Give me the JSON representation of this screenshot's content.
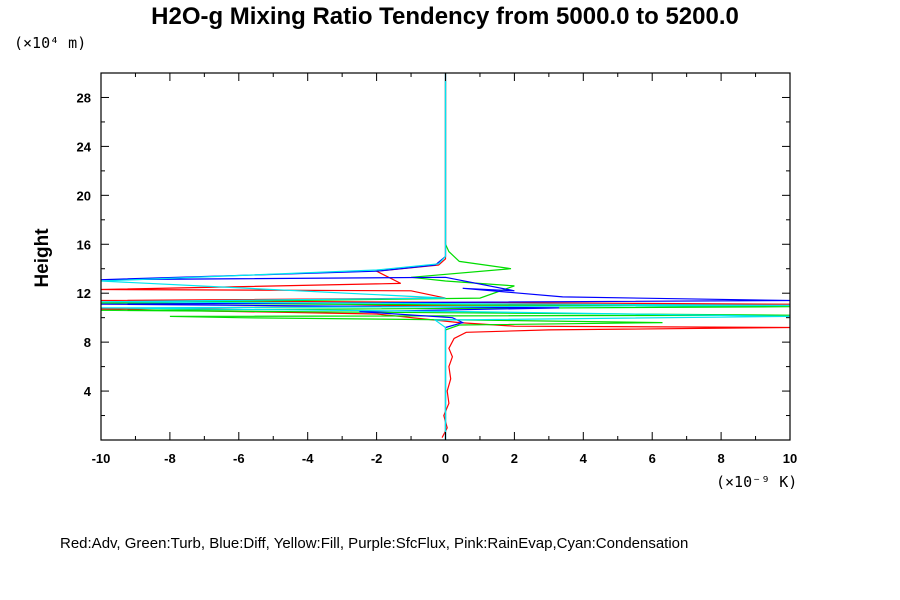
{
  "chart_data": {
    "type": "line",
    "title": "H2O-g Mixing Ratio Tendency from 5000.0 to 5200.0",
    "ylabel": "Height",
    "y_scale_label": "(×10⁴ m)",
    "x_scale_label": "(×10⁻⁹ K)",
    "xlim": [
      -10,
      10
    ],
    "ylim": [
      0,
      30
    ],
    "x_ticks": [
      -10,
      -8,
      -6,
      -4,
      -2,
      0,
      2,
      4,
      6,
      8,
      10
    ],
    "y_ticks": [
      4,
      8,
      12,
      16,
      20,
      24,
      28
    ],
    "legend_text": "Red:Adv, Green:Turb, Blue:Diff, Yellow:Fill, Purple:SfcFlux, Pink:RainEvap,Cyan:Condensation",
    "series": [
      {
        "name": "Adv",
        "color": "#ff0000",
        "points": [
          [
            -0.1,
            0.2
          ],
          [
            0.05,
            1.0
          ],
          [
            -0.05,
            2.0
          ],
          [
            0.1,
            3.0
          ],
          [
            0.05,
            4.0
          ],
          [
            0.15,
            5.0
          ],
          [
            0.1,
            6.0
          ],
          [
            0.2,
            6.8
          ],
          [
            0.1,
            7.5
          ],
          [
            0.25,
            8.3
          ],
          [
            0.6,
            8.8
          ],
          [
            3.0,
            9.0
          ],
          [
            10.0,
            9.2
          ],
          [
            2.0,
            9.3
          ],
          [
            0.4,
            9.6
          ],
          [
            -2.0,
            10.3
          ],
          [
            -10.0,
            10.7
          ],
          [
            -1.0,
            11.0
          ],
          [
            10.0,
            11.1
          ],
          [
            -10.0,
            11.4
          ],
          [
            0.0,
            11.6
          ],
          [
            -1.0,
            12.2
          ],
          [
            -10.0,
            12.3
          ],
          [
            -1.3,
            12.8
          ],
          [
            -2.0,
            13.8
          ],
          [
            -0.2,
            14.3
          ],
          [
            0.0,
            14.8
          ],
          [
            0.0,
            30.0
          ]
        ]
      },
      {
        "name": "Turb",
        "color": "#00dd00",
        "points": [
          [
            0.0,
            0.0
          ],
          [
            0.0,
            9.0
          ],
          [
            0.4,
            9.4
          ],
          [
            6.3,
            9.6
          ],
          [
            1.0,
            9.8
          ],
          [
            -6.0,
            10.0
          ],
          [
            -8.0,
            10.1
          ],
          [
            10.0,
            10.2
          ],
          [
            -10.0,
            10.6
          ],
          [
            10.0,
            10.9
          ],
          [
            -10.0,
            11.2
          ],
          [
            1.0,
            11.6
          ],
          [
            2.0,
            12.6
          ],
          [
            0.0,
            13.0
          ],
          [
            -1.0,
            13.3
          ],
          [
            1.9,
            14.0
          ],
          [
            0.4,
            14.6
          ],
          [
            0.1,
            15.4
          ],
          [
            0.0,
            16.0
          ],
          [
            0.0,
            30.0
          ]
        ]
      },
      {
        "name": "Diff",
        "color": "#0000ff",
        "points": [
          [
            0.0,
            0.0
          ],
          [
            0.0,
            9.2
          ],
          [
            0.5,
            9.6
          ],
          [
            0.2,
            10.0
          ],
          [
            -2.5,
            10.5
          ],
          [
            3.3,
            10.8
          ],
          [
            -10.0,
            11.1
          ],
          [
            10.0,
            11.4
          ],
          [
            3.4,
            11.7
          ],
          [
            0.5,
            12.4
          ],
          [
            2.0,
            12.2
          ],
          [
            0.0,
            13.3
          ],
          [
            -10.0,
            13.1
          ],
          [
            -2.0,
            13.8
          ],
          [
            -0.3,
            14.3
          ],
          [
            0.0,
            15.0
          ],
          [
            0.0,
            30.0
          ]
        ]
      },
      {
        "name": "Condensation",
        "color": "#00e5ee",
        "points": [
          [
            0.0,
            0.0
          ],
          [
            0.0,
            9.2
          ],
          [
            -0.3,
            9.8
          ],
          [
            10.0,
            10.1
          ],
          [
            0.5,
            10.5
          ],
          [
            -10.0,
            10.8
          ],
          [
            10.0,
            11.0
          ],
          [
            -10.0,
            11.3
          ],
          [
            0.0,
            11.6
          ],
          [
            -10.0,
            13.0
          ],
          [
            -2.0,
            13.9
          ],
          [
            -0.2,
            14.4
          ],
          [
            0.0,
            15.0
          ],
          [
            0.0,
            30.0
          ]
        ]
      }
    ]
  }
}
